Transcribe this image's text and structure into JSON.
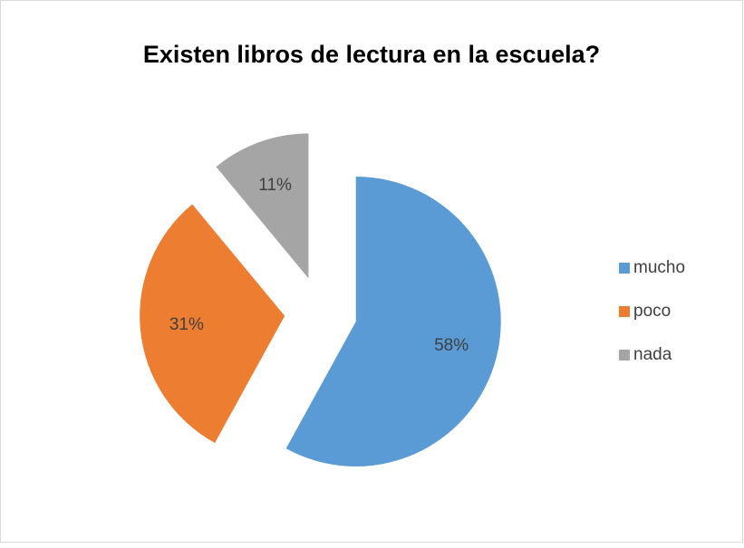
{
  "chart_data": {
    "type": "pie",
    "title": "Existen libros de lectura en la escuela?",
    "categories": [
      "mucho",
      "poco",
      "nada"
    ],
    "values": [
      58,
      31,
      11
    ],
    "value_labels": [
      "58%",
      "31%",
      "11%"
    ],
    "colors": [
      "#5b9bd5",
      "#ed7d31",
      "#a5a5a5"
    ],
    "legend": "right"
  }
}
